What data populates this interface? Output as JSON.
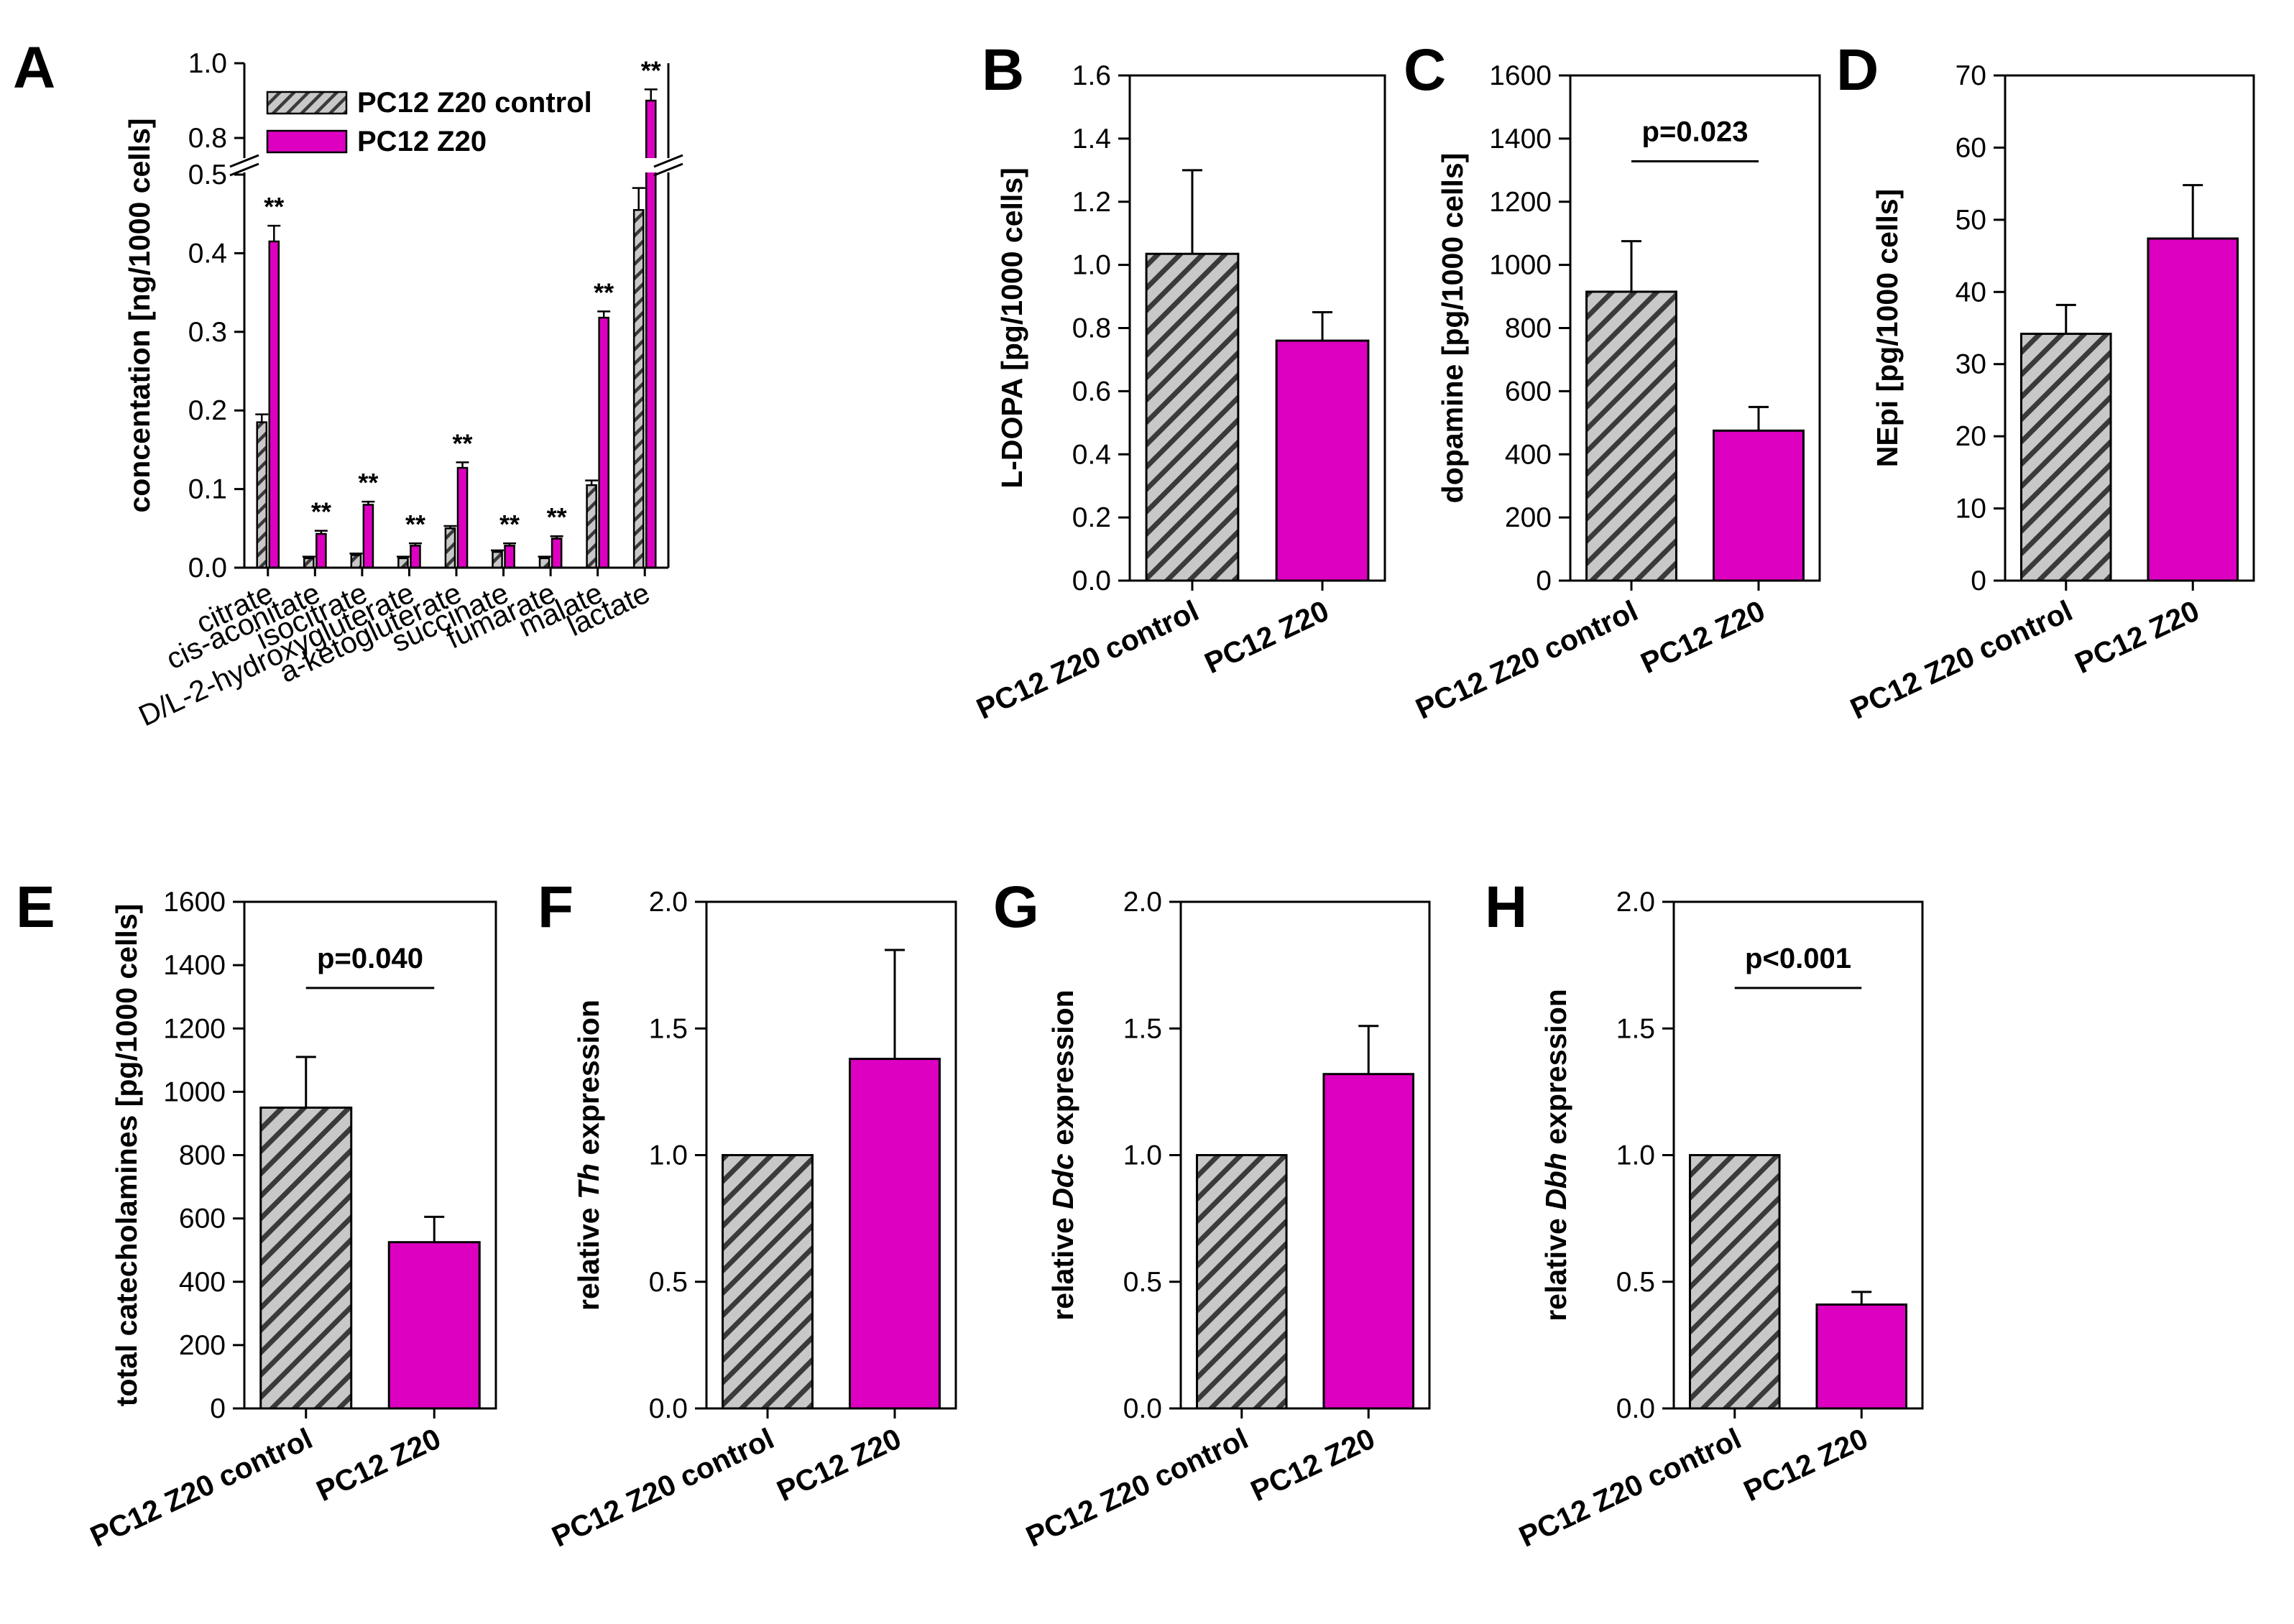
{
  "colors": {
    "control_fill": "#c8c8c8",
    "control_hatch": "#3a3a3a",
    "treated": "#dd00c0",
    "axis": "#000000"
  },
  "legend": {
    "control": "PC12 Z20 control",
    "treated": "PC12 Z20"
  },
  "chart_data": [
    {
      "id": "A",
      "type": "bar",
      "label": "A",
      "ylabel": "concentation [ng/1000 cells]",
      "categories": [
        "citrate",
        "cis-aconitate",
        "isocitrate",
        "D/L-2-hydroxygluterate",
        "a-ketogluterate",
        "succinate",
        "fumarate",
        "malate",
        "lactate"
      ],
      "series": [
        {
          "name": "PC12 Z20 control",
          "values": [
            0.185,
            0.012,
            0.016,
            0.012,
            0.05,
            0.02,
            0.012,
            0.105,
            0.455
          ],
          "errors": [
            0.01,
            0.002,
            0.002,
            0.002,
            0.003,
            0.002,
            0.002,
            0.006,
            0.028
          ]
        },
        {
          "name": "PC12 Z20",
          "values": [
            0.415,
            0.043,
            0.08,
            0.028,
            0.127,
            0.028,
            0.037,
            0.318,
            0.9
          ],
          "errors": [
            0.02,
            0.004,
            0.004,
            0.003,
            0.007,
            0.003,
            0.003,
            0.008,
            0.03
          ]
        }
      ],
      "ylim": [
        0,
        1.0
      ],
      "yaxis_break": {
        "lower": [
          0,
          0.5
        ],
        "upper": [
          0.75,
          1.0
        ]
      },
      "yticks": [
        "0.0",
        "0.1",
        "0.2",
        "0.3",
        "0.4",
        "0.5",
        "0.8",
        "1.0"
      ],
      "significance": "**"
    },
    {
      "id": "B",
      "type": "bar",
      "label": "B",
      "ylabel": "L-DOPA [pg/1000 cells]",
      "categories": [
        "PC12 Z20 control",
        "PC12 Z20"
      ],
      "values": [
        1.035,
        0.76
      ],
      "errors": [
        0.265,
        0.09
      ],
      "ylim": [
        0,
        1.6
      ],
      "yticks": [
        "0.0",
        "0.2",
        "0.4",
        "0.6",
        "0.8",
        "1.0",
        "1.2",
        "1.4",
        "1.6"
      ],
      "pvalue": ""
    },
    {
      "id": "C",
      "type": "bar",
      "label": "C",
      "ylabel": "dopamine [pg/1000 cells]",
      "categories": [
        "PC12 Z20 control",
        "PC12 Z20"
      ],
      "values": [
        915,
        475
      ],
      "errors": [
        160,
        75
      ],
      "ylim": [
        0,
        1600
      ],
      "yticks": [
        "0",
        "200",
        "400",
        "600",
        "800",
        "1000",
        "1200",
        "1400",
        "1600"
      ],
      "pvalue": "p=0.023"
    },
    {
      "id": "D",
      "type": "bar",
      "label": "D",
      "ylabel": "NEpi [pg/1000 cells]",
      "categories": [
        "PC12 Z20 control",
        "PC12 Z20"
      ],
      "values": [
        34.2,
        47.4
      ],
      "errors": [
        4.0,
        7.4
      ],
      "ylim": [
        0,
        70
      ],
      "yticks": [
        "0",
        "10",
        "20",
        "30",
        "40",
        "50",
        "60",
        "70"
      ],
      "pvalue": ""
    },
    {
      "id": "E",
      "type": "bar",
      "label": "E",
      "ylabel": "total catecholamines [pg/1000 cells]",
      "categories": [
        "PC12 Z20 control",
        "PC12 Z20"
      ],
      "values": [
        950,
        525
      ],
      "errors": [
        160,
        80
      ],
      "ylim": [
        0,
        1600
      ],
      "yticks": [
        "0",
        "200",
        "400",
        "600",
        "800",
        "1000",
        "1200",
        "1400",
        "1600"
      ],
      "pvalue": "p=0.040"
    },
    {
      "id": "F",
      "type": "bar",
      "label": "F",
      "ylabel": "relative Th expression",
      "ylabel_parts": [
        "relative ",
        "Th",
        " expression"
      ],
      "categories": [
        "PC12 Z20 control",
        "PC12 Z20"
      ],
      "values": [
        1.0,
        1.38
      ],
      "errors": [
        0,
        0.43
      ],
      "ylim": [
        0,
        2.0
      ],
      "yticks": [
        "0.0",
        "0.5",
        "1.0",
        "1.5",
        "2.0"
      ],
      "pvalue": ""
    },
    {
      "id": "G",
      "type": "bar",
      "label": "G",
      "ylabel": "relative Ddc expression",
      "ylabel_parts": [
        "relative ",
        "Ddc",
        " expression"
      ],
      "categories": [
        "PC12 Z20 control",
        "PC12 Z20"
      ],
      "values": [
        1.0,
        1.32
      ],
      "errors": [
        0,
        0.19
      ],
      "ylim": [
        0,
        2.0
      ],
      "yticks": [
        "0.0",
        "0.5",
        "1.0",
        "1.5",
        "2.0"
      ],
      "pvalue": ""
    },
    {
      "id": "H",
      "type": "bar",
      "label": "H",
      "ylabel": "relative Dbh expression",
      "ylabel_parts": [
        "relative ",
        "Dbh",
        " expression"
      ],
      "categories": [
        "PC12 Z20 control",
        "PC12 Z20"
      ],
      "values": [
        1.0,
        0.41
      ],
      "errors": [
        0,
        0.05
      ],
      "ylim": [
        0,
        2.0
      ],
      "yticks": [
        "0.0",
        "0.5",
        "1.0",
        "1.5",
        "2.0"
      ],
      "pvalue": "p<0.001"
    }
  ]
}
